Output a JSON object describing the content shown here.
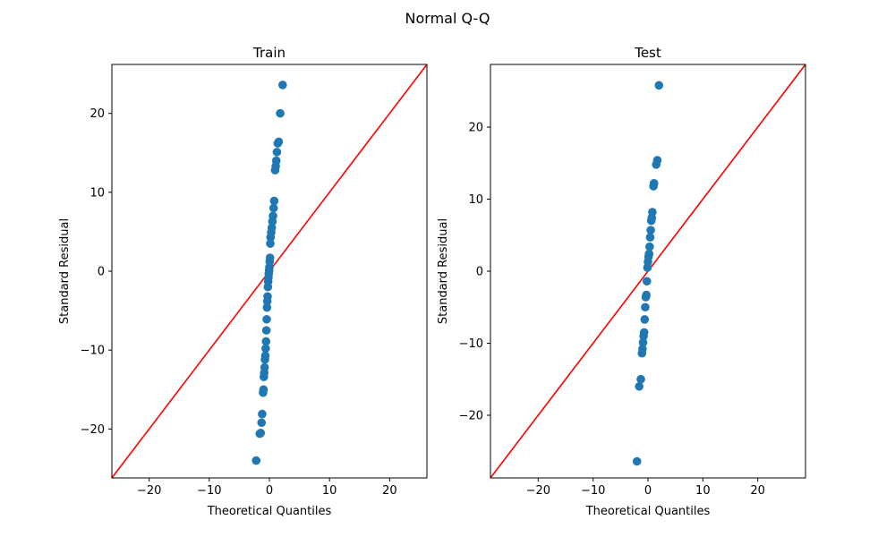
{
  "figure": {
    "suptitle": "Normal Q-Q"
  },
  "colors": {
    "points": "#1f77b4",
    "reference_line": "#ff0000",
    "axes": "#000000",
    "background": "#ffffff"
  },
  "chart_data": [
    {
      "type": "scatter",
      "title": "Train",
      "xlabel": "Theoretical Quantiles",
      "ylabel": "Standard Residual",
      "xlim": [
        -26.2,
        26.2
      ],
      "ylim": [
        -26.2,
        26.2
      ],
      "xticks": [
        -20,
        -10,
        0,
        10,
        20
      ],
      "yticks": [
        -20,
        -10,
        0,
        10,
        20
      ],
      "xtick_labels": [
        "−20",
        "−10",
        "0",
        "10",
        "20"
      ],
      "ytick_labels": [
        "−20",
        "−10",
        "0",
        "10",
        "20"
      ],
      "grid": false,
      "reference_line": "y = x",
      "points": [
        {
          "x": -2.2,
          "y": -24.0
        },
        {
          "x": -1.6,
          "y": -20.6
        },
        {
          "x": -1.45,
          "y": -20.5
        },
        {
          "x": -1.3,
          "y": -19.2
        },
        {
          "x": -1.2,
          "y": -18.1
        },
        {
          "x": -1.05,
          "y": -15.4
        },
        {
          "x": -0.98,
          "y": -15.0
        },
        {
          "x": -0.92,
          "y": -13.4
        },
        {
          "x": -0.86,
          "y": -12.9
        },
        {
          "x": -0.8,
          "y": -12.2
        },
        {
          "x": -0.74,
          "y": -11.2
        },
        {
          "x": -0.68,
          "y": -10.7
        },
        {
          "x": -0.62,
          "y": -9.8
        },
        {
          "x": -0.56,
          "y": -8.9
        },
        {
          "x": -0.5,
          "y": -7.5
        },
        {
          "x": -0.45,
          "y": -6.1
        },
        {
          "x": -0.4,
          "y": -4.6
        },
        {
          "x": -0.35,
          "y": -3.8
        },
        {
          "x": -0.3,
          "y": -3.2
        },
        {
          "x": -0.25,
          "y": -2.0
        },
        {
          "x": -0.2,
          "y": -1.3
        },
        {
          "x": -0.15,
          "y": -0.8
        },
        {
          "x": -0.1,
          "y": -0.3
        },
        {
          "x": -0.05,
          "y": 0.1
        },
        {
          "x": 0.0,
          "y": 0.5
        },
        {
          "x": 0.05,
          "y": 1.2
        },
        {
          "x": 0.1,
          "y": 1.7
        },
        {
          "x": 0.15,
          "y": 3.5
        },
        {
          "x": 0.2,
          "y": 4.3
        },
        {
          "x": 0.3,
          "y": 4.9
        },
        {
          "x": 0.4,
          "y": 5.5
        },
        {
          "x": 0.5,
          "y": 6.3
        },
        {
          "x": 0.6,
          "y": 7.0
        },
        {
          "x": 0.7,
          "y": 8.0
        },
        {
          "x": 0.8,
          "y": 8.9
        },
        {
          "x": 0.95,
          "y": 12.8
        },
        {
          "x": 1.05,
          "y": 13.3
        },
        {
          "x": 1.15,
          "y": 14.0
        },
        {
          "x": 1.25,
          "y": 15.1
        },
        {
          "x": 1.4,
          "y": 16.2
        },
        {
          "x": 1.55,
          "y": 16.4
        },
        {
          "x": 1.8,
          "y": 20.0
        },
        {
          "x": 2.2,
          "y": 23.6
        }
      ]
    },
    {
      "type": "scatter",
      "title": "Test",
      "xlabel": "Theoretical Quantiles",
      "ylabel": "Standard Residual",
      "xlim": [
        -28.7,
        28.7
      ],
      "ylim": [
        -28.7,
        28.7
      ],
      "xticks": [
        -20,
        -10,
        0,
        10,
        20
      ],
      "yticks": [
        -20,
        -10,
        0,
        10,
        20
      ],
      "xtick_labels": [
        "−20",
        "−10",
        "0",
        "10",
        "20"
      ],
      "ytick_labels": [
        "−20",
        "−10",
        "0",
        "10",
        "20"
      ],
      "grid": false,
      "reference_line": "y = x",
      "points": [
        {
          "x": -2.0,
          "y": -26.4
        },
        {
          "x": -1.6,
          "y": -16.0
        },
        {
          "x": -1.3,
          "y": -15.0
        },
        {
          "x": -1.1,
          "y": -11.4
        },
        {
          "x": -1.0,
          "y": -10.8
        },
        {
          "x": -0.9,
          "y": -9.9
        },
        {
          "x": -0.8,
          "y": -9.0
        },
        {
          "x": -0.7,
          "y": -8.5
        },
        {
          "x": -0.6,
          "y": -6.7
        },
        {
          "x": -0.5,
          "y": -5.0
        },
        {
          "x": -0.4,
          "y": -3.6
        },
        {
          "x": -0.3,
          "y": -3.3
        },
        {
          "x": -0.2,
          "y": -1.4
        },
        {
          "x": -0.1,
          "y": 0.5
        },
        {
          "x": 0.0,
          "y": 1.3
        },
        {
          "x": 0.1,
          "y": 2.0
        },
        {
          "x": 0.2,
          "y": 2.4
        },
        {
          "x": 0.3,
          "y": 3.4
        },
        {
          "x": 0.4,
          "y": 4.7
        },
        {
          "x": 0.5,
          "y": 5.7
        },
        {
          "x": 0.6,
          "y": 7.0
        },
        {
          "x": 0.7,
          "y": 7.4
        },
        {
          "x": 0.8,
          "y": 8.2
        },
        {
          "x": 1.0,
          "y": 11.8
        },
        {
          "x": 1.1,
          "y": 12.2
        },
        {
          "x": 1.5,
          "y": 14.8
        },
        {
          "x": 1.7,
          "y": 15.4
        },
        {
          "x": 2.0,
          "y": 25.8
        }
      ]
    }
  ]
}
